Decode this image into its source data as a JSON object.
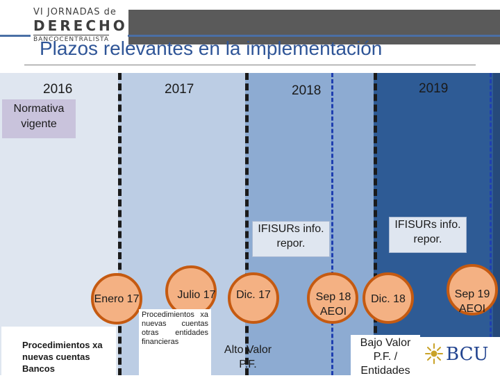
{
  "header": {
    "logo_line1": "VI JORNADAS de",
    "logo_line2": "DERECHO",
    "logo_line3": "BANCOCENTRALISTA",
    "title": "Plazos relevantes en la implementación"
  },
  "years": [
    "2016",
    "2017",
    "2018",
    "2019"
  ],
  "normativa": "Normativa vigente",
  "callouts": [
    "IFISURs info. repor.",
    "IFISURs info. repor."
  ],
  "milestones": [
    "Enero 17",
    "Julio 17",
    "Dic. 17",
    "Sep 18 AEOI",
    "Dic. 18",
    "Sep 19 AEOI"
  ],
  "notes": {
    "bancos": "Procedimientos xa nuevas cuentas Bancos",
    "entidades": "Procedimientos xa nuevas cuentas otras entidades financieras",
    "alto_valor": "Alto Valor P.F.",
    "bajo_valor": "Bajo Valor P.F. / Entidades"
  },
  "brand": {
    "bcu": "BCU"
  },
  "colors": {
    "title": "#2f5597",
    "milestone_fill": "#f4b183",
    "milestone_border": "#c55a11",
    "band_2019": "#2e5b95"
  }
}
